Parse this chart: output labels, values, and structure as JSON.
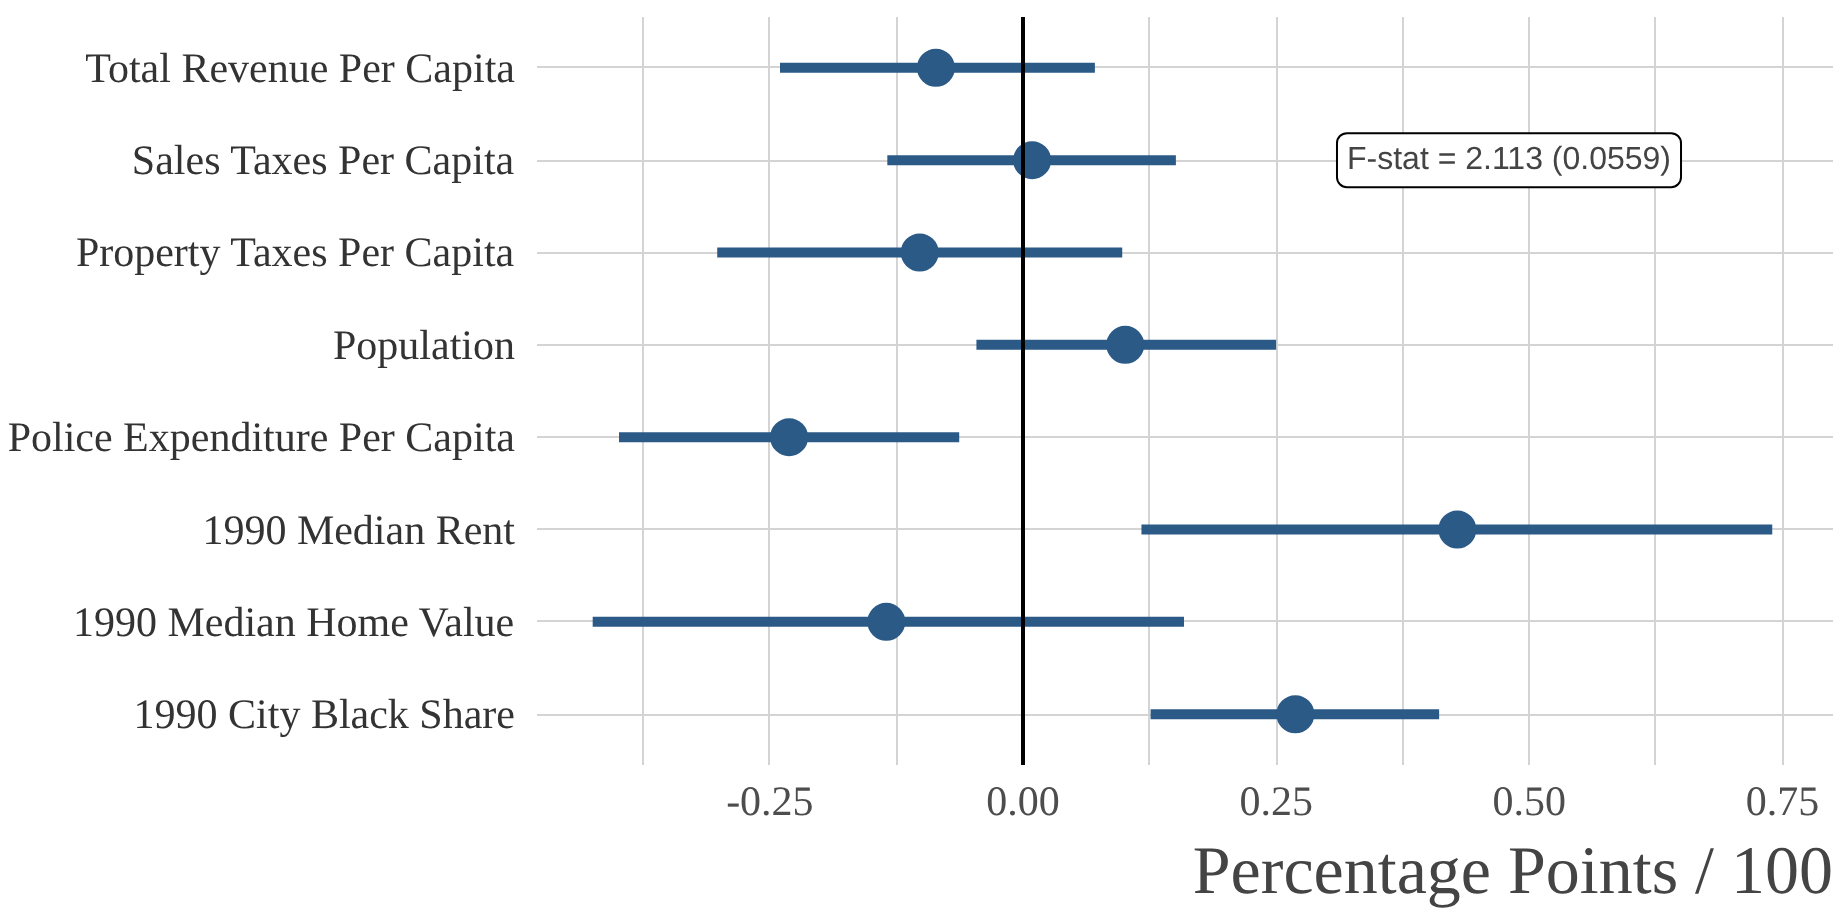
{
  "chart_data": {
    "type": "scatter",
    "orientation": "horizontal",
    "xlabel": "Percentage Points / 100",
    "categories": [
      "Total Revenue Per Capita",
      "Sales Taxes Per Capita",
      "Property Taxes Per Capita",
      "Population",
      "Police Expenditure Per Capita",
      "1990 Median Rent",
      "1990 Median Home Value",
      "1990 City Black Share"
    ],
    "series": [
      {
        "color": "#2b5a87",
        "values": [
          -0.086,
          0.009,
          -0.102,
          0.101,
          -0.231,
          0.429,
          -0.135,
          0.269
        ],
        "errors": [
          [
            -0.24,
            0.071
          ],
          [
            -0.134,
            0.151
          ],
          [
            -0.302,
            0.098
          ],
          [
            -0.046,
            0.25
          ],
          [
            -0.399,
            -0.063
          ],
          [
            0.117,
            0.74
          ],
          [
            -0.425,
            0.159
          ],
          [
            0.126,
            0.411
          ]
        ]
      }
    ],
    "xlim": [
      -0.48,
      0.8
    ],
    "xticks": [
      -0.25,
      {
        "value": 0,
        "label": "0.00"
      },
      0.25,
      {
        "value": 0.5,
        "label": "0.50"
      },
      0.75
    ],
    "ref_lines": [
      {
        "axis": "x",
        "value": 0,
        "color": "#000000"
      }
    ],
    "annotations": [
      "F-stat = 2.113 (0.0559)"
    ],
    "grid": true,
    "marker": "circle"
  }
}
